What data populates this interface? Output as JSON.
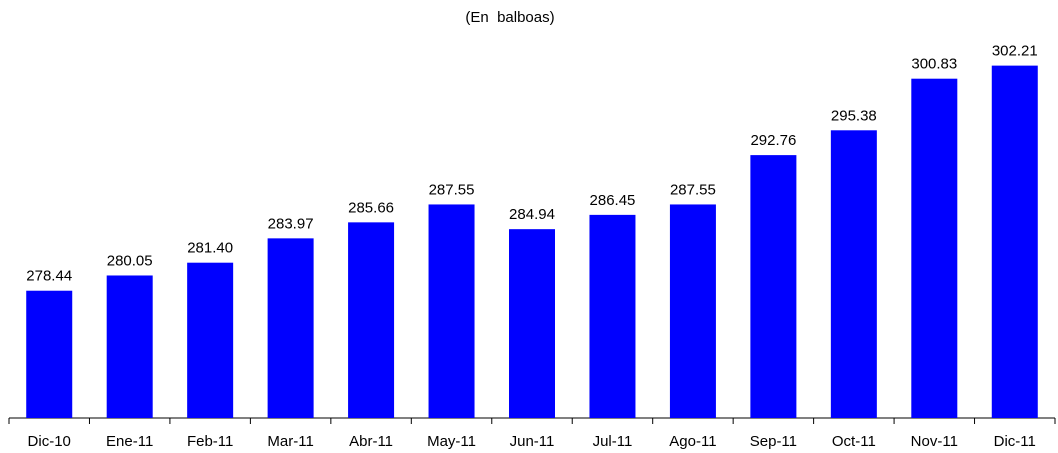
{
  "chart_data": {
    "type": "bar",
    "title": "(En  balboas)",
    "categories": [
      "Dic-10",
      "Ene-11",
      "Feb-11",
      "Mar-11",
      "Abr-11",
      "May-11",
      "Jun-11",
      "Jul-11",
      "Ago-11",
      "Sep-11",
      "Oct-11",
      "Nov-11",
      "Dic-11"
    ],
    "values": [
      278.44,
      280.05,
      281.4,
      283.97,
      285.66,
      287.55,
      284.94,
      286.45,
      287.55,
      292.76,
      295.38,
      300.83,
      302.21
    ],
    "value_labels": [
      "278.44",
      "280.05",
      "281.40",
      "283.97",
      "285.66",
      "287.55",
      "284.94",
      "286.45",
      "287.55",
      "292.76",
      "295.38",
      "300.83",
      "302.21"
    ],
    "color": "#0000ff",
    "ylim": [
      265,
      305
    ]
  }
}
